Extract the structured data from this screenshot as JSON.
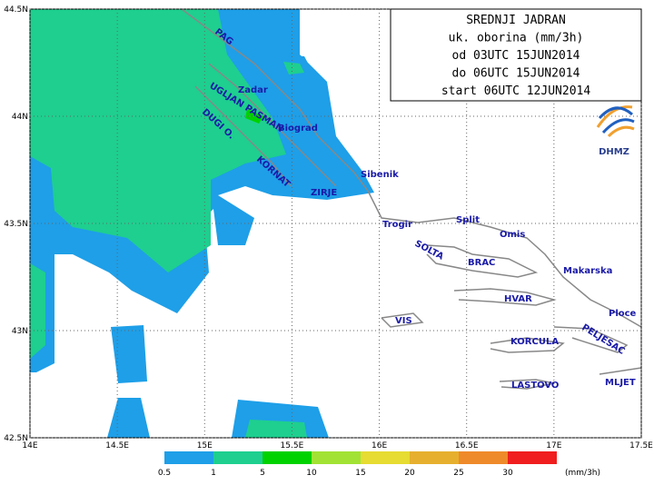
{
  "title_box": {
    "lines": [
      "SREDNJI JADRAN",
      "uk. oborina (mm/3h)",
      "od 03UTC 15JUN2014",
      "do 06UTC 15JUN2014",
      "start 06UTC 12JUN2014"
    ]
  },
  "logo": "DHMZ",
  "xticks": [
    {
      "value": 14,
      "label": "14E"
    },
    {
      "value": 14.5,
      "label": "14.5E"
    },
    {
      "value": 15,
      "label": "15E"
    },
    {
      "value": 15.5,
      "label": "15.5E"
    },
    {
      "value": 16,
      "label": "16E"
    },
    {
      "value": 16.5,
      "label": "16.5E"
    },
    {
      "value": 17,
      "label": "17E"
    },
    {
      "value": 17.5,
      "label": "17.5E"
    }
  ],
  "yticks": [
    {
      "value": 42.5,
      "label": "42.5N"
    },
    {
      "value": 43,
      "label": "43N"
    },
    {
      "value": 43.5,
      "label": "43.5N"
    },
    {
      "value": 44,
      "label": "44N"
    },
    {
      "value": 44.5,
      "label": "44.5N"
    }
  ],
  "places": [
    "PAG",
    "Zadar",
    "UGLJAN PASMAN",
    "Biograd",
    "DUGI O.",
    "KORNAT",
    "ZIRJE",
    "Sibenik",
    "Trogir",
    "Split",
    "SOLTA",
    "Omis",
    "BRAC",
    "Makarska",
    "HVAR",
    "Ploce",
    "VIS",
    "PELJESAC",
    "KORCULA",
    "MLJET",
    "LASTOVO"
  ],
  "legend": {
    "levels": [
      0.5,
      1,
      5,
      10,
      15,
      20,
      25,
      30
    ],
    "colors": [
      "#1e9fe8",
      "#1ecf8f",
      "#00d200",
      "#a2e234",
      "#e6dc32",
      "#e6b02e",
      "#ef8a2a",
      "#f01e1e"
    ],
    "unit": "(mm/3h)"
  }
}
